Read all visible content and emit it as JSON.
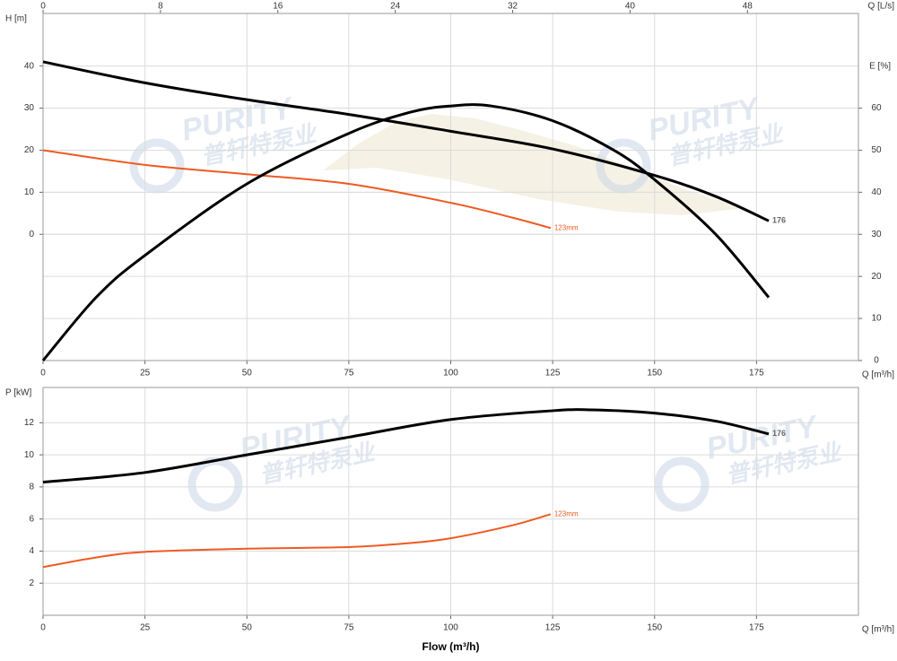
{
  "chart_data": [
    {
      "type": "line",
      "x_label": "Q [m³/h]",
      "x2_label": "Q [L/s]",
      "y_label": "H [m]",
      "y2_label": "E [%]",
      "xlim": [
        0,
        200
      ],
      "xticks": [
        0,
        25,
        50,
        75,
        100,
        125,
        150,
        175
      ],
      "x2lim": [
        0,
        55.56
      ],
      "x2ticks": [
        0,
        8,
        16,
        24,
        32,
        40,
        48
      ],
      "ylim": [
        -30,
        52.5
      ],
      "yticks": [
        0,
        10,
        20,
        30,
        40
      ],
      "y2lim": [
        0,
        82.5
      ],
      "y2ticks": [
        0,
        10,
        20,
        30,
        40,
        50,
        60
      ],
      "grid": true,
      "watermark": [
        "PURITY",
        "普轩特泵业"
      ],
      "series": [
        {
          "name": "176",
          "color": "#000000",
          "x": [
            0,
            25,
            50,
            75,
            100,
            125,
            150,
            165,
            178
          ],
          "values": [
            41,
            36,
            32,
            28.5,
            24.5,
            20.3,
            14,
            9,
            3.2
          ]
        },
        {
          "name": "123mm",
          "color": "#ef5a21",
          "x": [
            0,
            25,
            50,
            75,
            100,
            115,
            124.5
          ],
          "values": [
            20,
            16.5,
            14.3,
            12,
            7.5,
            4,
            1.5
          ]
        },
        {
          "color": "#000000",
          "axis": "y2",
          "x": [
            0,
            13,
            25,
            50,
            75,
            90,
            100,
            110,
            125,
            140,
            150,
            165,
            178
          ],
          "values": [
            0,
            15,
            25,
            42,
            54,
            59,
            60.5,
            60.5,
            57,
            50,
            43,
            30,
            15
          ]
        }
      ]
    },
    {
      "type": "line",
      "x_label": "Q [m³/h]",
      "y_label": "P [kW]",
      "title": "Flow (m³/h)",
      "xlim": [
        0,
        200
      ],
      "xticks": [
        0,
        25,
        50,
        75,
        100,
        125,
        150,
        175
      ],
      "ylim": [
        0,
        14.2
      ],
      "yticks": [
        2,
        4,
        6,
        8,
        10,
        12
      ],
      "grid": true,
      "watermark": [
        "PURITY",
        "普轩特泵业"
      ],
      "series": [
        {
          "name": "176",
          "color": "#000000",
          "x": [
            0,
            25,
            50,
            75,
            100,
            125,
            135,
            150,
            165,
            178
          ],
          "values": [
            8.3,
            8.9,
            10,
            11.1,
            12.2,
            12.75,
            12.8,
            12.6,
            12.1,
            11.3
          ]
        },
        {
          "name": "123mm",
          "color": "#ef5a21",
          "x": [
            0,
            13,
            25,
            50,
            75,
            90,
            100,
            115,
            124.5
          ],
          "values": [
            3,
            3.6,
            3.95,
            4.15,
            4.25,
            4.5,
            4.8,
            5.6,
            6.3
          ]
        }
      ]
    }
  ]
}
